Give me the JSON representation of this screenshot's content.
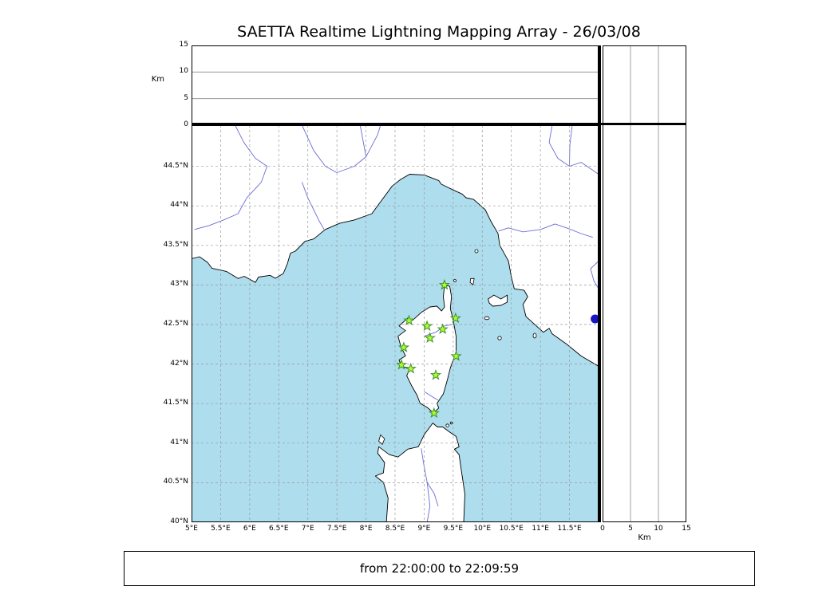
{
  "title": "SAETTA Realtime Lightning Mapping Array - 26/03/08",
  "footer_text": "from 22:00:00 to 22:09:59",
  "colors": {
    "sea": "#aedded",
    "land": "#ffffff",
    "coastline": "#000000",
    "river": "#6b6bd6",
    "grid": "#999999",
    "station_fill": "#adff2f",
    "station_edge": "#3d8f28",
    "italy_marker": "#1616c8"
  },
  "map_extent": {
    "lon_min": 5.0,
    "lon_max": 12.0,
    "lat_min": 40.0,
    "lat_max": 45.02
  },
  "axes": {
    "alt_label": "Km",
    "alt_max_km": 15,
    "alt_ticks": [
      {
        "v": 0,
        "label": "0"
      },
      {
        "v": 5,
        "label": "5"
      },
      {
        "v": 10,
        "label": "10"
      },
      {
        "v": 15,
        "label": "15"
      }
    ],
    "lon_ticks": [
      {
        "v": 5,
        "label": "5°E"
      },
      {
        "v": 5.5,
        "label": "5.5°E"
      },
      {
        "v": 6,
        "label": "6°E"
      },
      {
        "v": 6.5,
        "label": "6.5°E"
      },
      {
        "v": 7,
        "label": "7°E"
      },
      {
        "v": 7.5,
        "label": "7.5°E"
      },
      {
        "v": 8,
        "label": "8°E"
      },
      {
        "v": 8.5,
        "label": "8.5°E"
      },
      {
        "v": 9,
        "label": "9°E"
      },
      {
        "v": 9.5,
        "label": "9.5°E"
      },
      {
        "v": 10,
        "label": "10°E"
      },
      {
        "v": 10.5,
        "label": "10.5°E"
      },
      {
        "v": 11,
        "label": "11°E"
      },
      {
        "v": 11.5,
        "label": "11.5°E"
      }
    ],
    "lat_ticks": [
      {
        "v": 40,
        "label": "40°N"
      },
      {
        "v": 40.5,
        "label": "40.5°N"
      },
      {
        "v": 41,
        "label": "41°N"
      },
      {
        "v": 41.5,
        "label": "41.5°N"
      },
      {
        "v": 42,
        "label": "42°N"
      },
      {
        "v": 42.5,
        "label": "42.5°N"
      },
      {
        "v": 43,
        "label": "43°N"
      },
      {
        "v": 43.5,
        "label": "43.5°N"
      },
      {
        "v": 44,
        "label": "44°N"
      },
      {
        "v": 44.5,
        "label": "44.5°N"
      }
    ]
  },
  "stations": [
    {
      "lon": 9.35,
      "lat": 43.0
    },
    {
      "lon": 8.74,
      "lat": 42.55
    },
    {
      "lon": 9.05,
      "lat": 42.48
    },
    {
      "lon": 9.32,
      "lat": 42.44
    },
    {
      "lon": 9.54,
      "lat": 42.58
    },
    {
      "lon": 8.65,
      "lat": 42.21
    },
    {
      "lon": 9.1,
      "lat": 42.33
    },
    {
      "lon": 9.55,
      "lat": 42.1
    },
    {
      "lon": 8.61,
      "lat": 41.99
    },
    {
      "lon": 8.77,
      "lat": 41.94
    },
    {
      "lon": 9.2,
      "lat": 41.86
    },
    {
      "lon": 9.17,
      "lat": 41.38
    }
  ],
  "italy_station": {
    "lon": 11.94,
    "lat": 42.57
  }
}
